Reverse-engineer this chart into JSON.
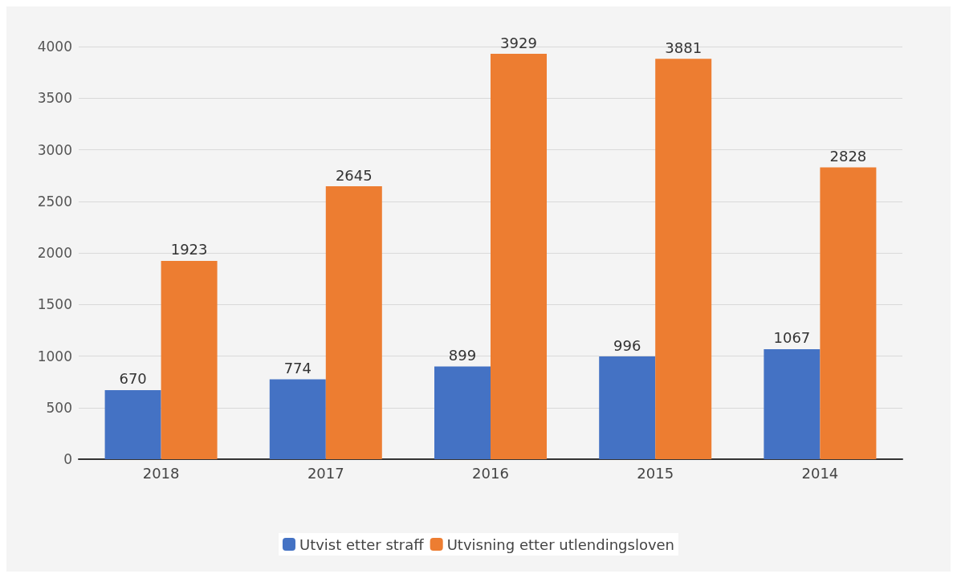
{
  "chart_data": {
    "type": "bar",
    "categories": [
      "2018",
      "2017",
      "2016",
      "2015",
      "2014"
    ],
    "series": [
      {
        "name": "Utvist etter straff",
        "color": "#4472c4",
        "values": [
          670,
          774,
          899,
          996,
          1067
        ]
      },
      {
        "name": "Utvisning etter utlendingsloven",
        "color": "#ed7d31",
        "values": [
          1923,
          2645,
          3929,
          3881,
          2828
        ]
      }
    ],
    "ylim": [
      0,
      4000
    ],
    "yticks": [
      0,
      500,
      1000,
      1500,
      2000,
      2500,
      3000,
      3500,
      4000
    ],
    "grid": "y",
    "legend": "bottom",
    "data_labels": true
  }
}
